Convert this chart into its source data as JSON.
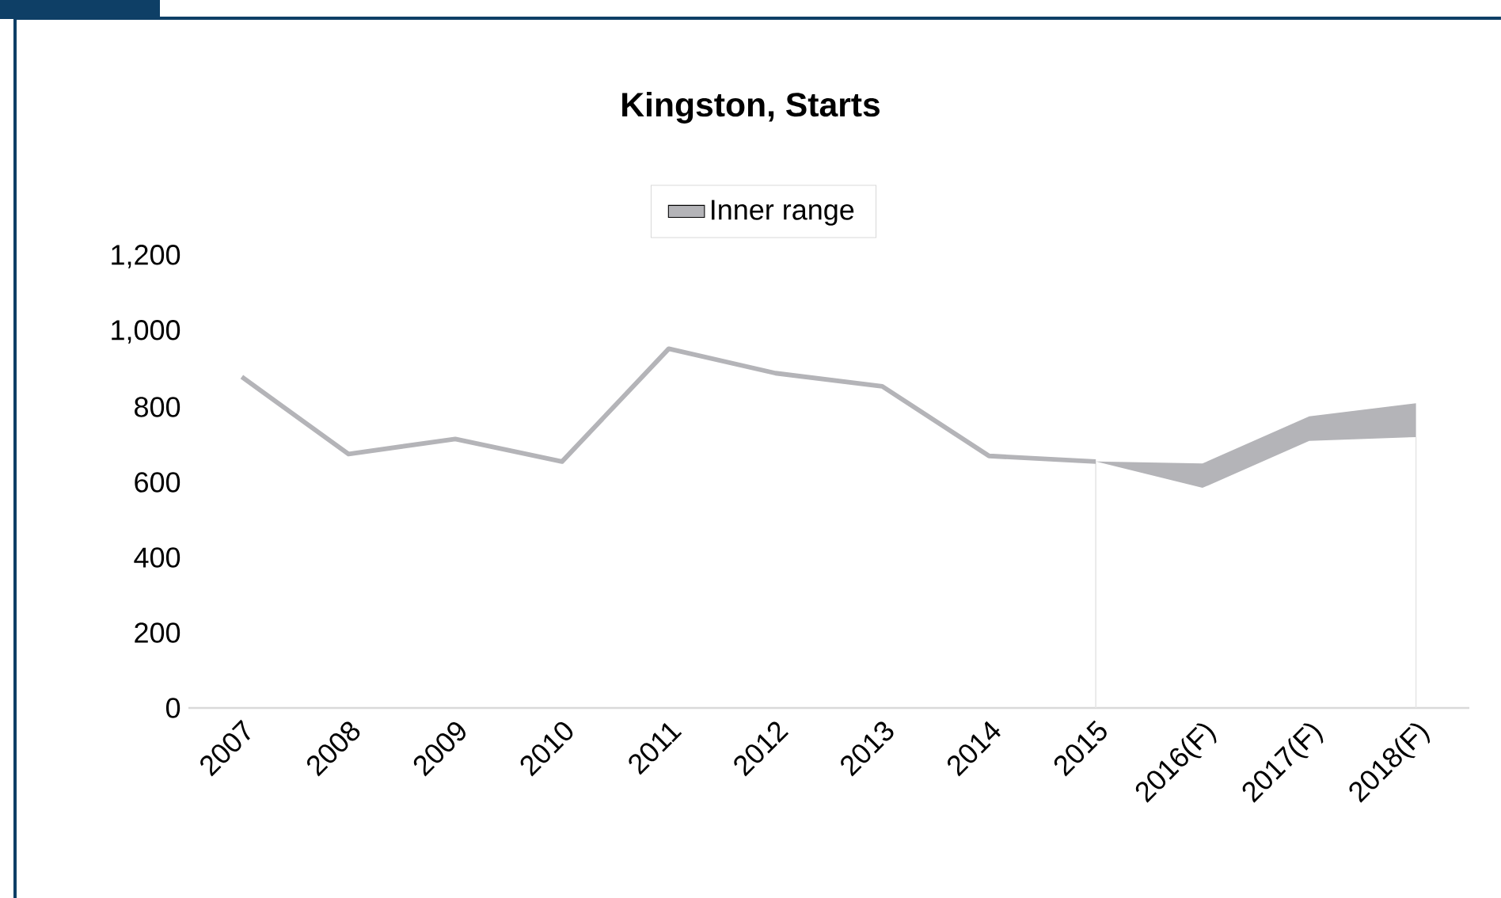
{
  "chart_data": {
    "type": "line",
    "title": "Kingston, Starts",
    "categories": [
      "2007",
      "2008",
      "2009",
      "2010",
      "2011",
      "2012",
      "2013",
      "2014",
      "2015",
      "2016(F)",
      "2017(F)",
      "2018(F)"
    ],
    "series": [
      {
        "name": "Inner range",
        "color": "#b4b4b8",
        "values": [
          880,
          675,
          715,
          655,
          955,
          890,
          855,
          670,
          655,
          null,
          null,
          null
        ],
        "lower": [
          null,
          null,
          null,
          null,
          null,
          null,
          null,
          null,
          655,
          585,
          710,
          720
        ],
        "upper": [
          null,
          null,
          null,
          null,
          null,
          null,
          null,
          null,
          655,
          650,
          775,
          810
        ]
      }
    ],
    "ylim": [
      0,
      1200
    ],
    "yticks": [
      0,
      200,
      400,
      600,
      800,
      {
        "value": 1000,
        "label": "1,000"
      },
      {
        "value": 1200,
        "label": "1,200"
      }
    ],
    "ref_lines": [
      {
        "axis": "x",
        "value": "2015",
        "color": "#e6e6e6"
      },
      {
        "axis": "x",
        "value": "2018(F)",
        "color": "#e6e6e6"
      }
    ],
    "legend": "top",
    "grid": false,
    "marker": "none",
    "line_style": "solid"
  }
}
